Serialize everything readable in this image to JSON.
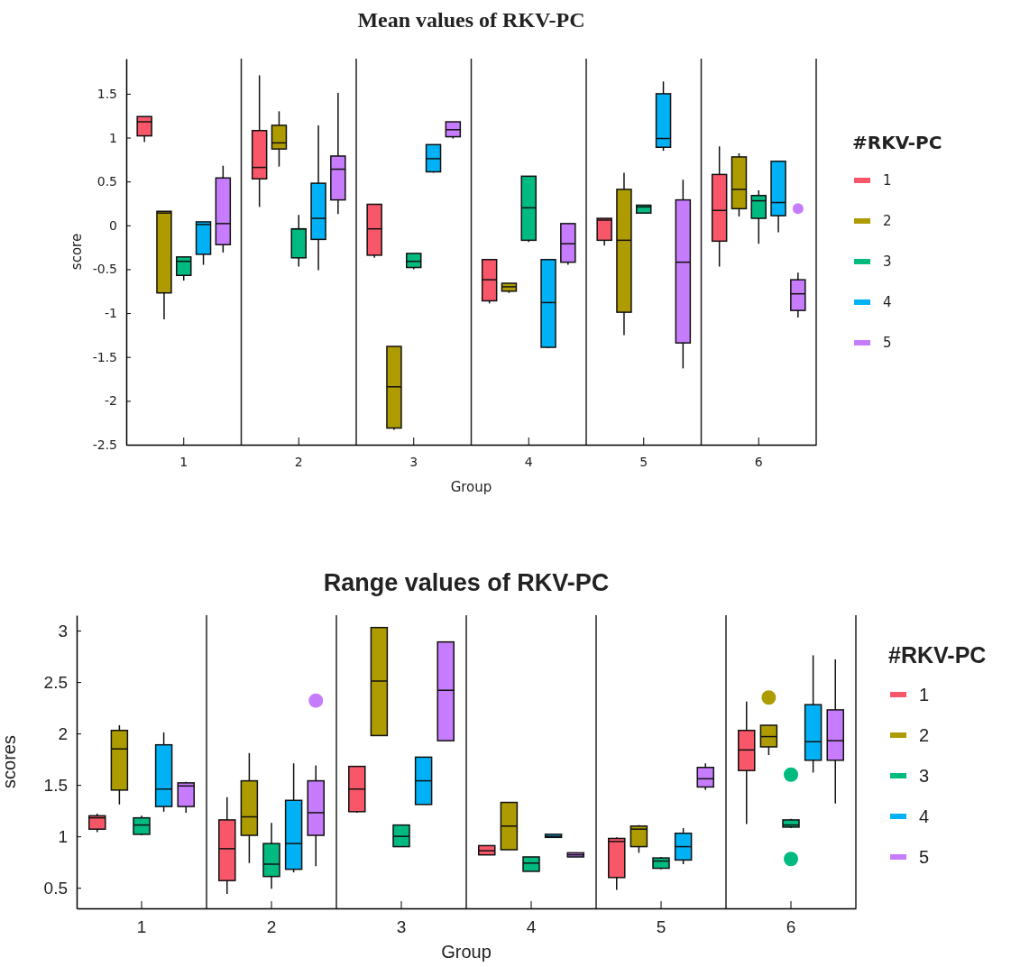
{
  "chart_data": [
    {
      "type": "box",
      "title": "Mean values of RKV-PC",
      "xlabel": "Group",
      "ylabel": "score",
      "legend_title": "#RKV-PC",
      "legend": "right",
      "categories": [
        "1",
        "2",
        "3",
        "4",
        "5",
        "6"
      ],
      "ylim": [
        -2.5,
        1.9
      ],
      "yticks": [
        -2.5,
        -2,
        -1.5,
        -1,
        -0.5,
        0,
        0.5,
        1,
        1.5
      ],
      "series": [
        {
          "name": "1",
          "color": "#f8576a",
          "boxes": [
            {
              "low": 0.95,
              "q1": 1.02,
              "median": 1.18,
              "q3": 1.24,
              "high": 1.24
            },
            {
              "low": 0.21,
              "q1": 0.53,
              "median": 0.66,
              "q3": 1.08,
              "high": 1.71
            },
            {
              "low": -0.37,
              "q1": -0.34,
              "median": -0.04,
              "q3": 0.24,
              "high": 0.24
            },
            {
              "low": -0.89,
              "q1": -0.86,
              "median": -0.62,
              "q3": -0.39,
              "high": -0.39
            },
            {
              "low": -0.23,
              "q1": -0.17,
              "median": 0.06,
              "q3": 0.08,
              "high": 0.08
            },
            {
              "low": -0.47,
              "q1": -0.18,
              "median": 0.17,
              "q3": 0.58,
              "high": 0.9
            }
          ]
        },
        {
          "name": "2",
          "color": "#ad9b00",
          "boxes": [
            {
              "low": -1.07,
              "q1": -0.77,
              "median": 0.14,
              "q3": 0.16,
              "high": 0.16
            },
            {
              "low": 0.67,
              "q1": 0.87,
              "median": 0.94,
              "q3": 1.14,
              "high": 1.3
            },
            {
              "low": -2.33,
              "q1": -2.31,
              "median": -1.84,
              "q3": -1.38,
              "high": -1.38
            },
            {
              "low": -0.77,
              "q1": -0.75,
              "median": -0.7,
              "q3": -0.66,
              "high": -0.66
            },
            {
              "low": -1.25,
              "q1": -0.99,
              "median": -0.17,
              "q3": 0.41,
              "high": 0.6
            },
            {
              "low": 0.1,
              "q1": 0.19,
              "median": 0.41,
              "q3": 0.78,
              "high": 0.82
            }
          ]
        },
        {
          "name": "3",
          "color": "#00ba7f",
          "boxes": [
            {
              "low": -0.63,
              "q1": -0.57,
              "median": -0.41,
              "q3": -0.36,
              "high": -0.36
            },
            {
              "low": -0.47,
              "q1": -0.37,
              "median": -0.04,
              "q3": -0.04,
              "high": 0.12
            },
            {
              "low": -0.5,
              "q1": -0.48,
              "median": -0.41,
              "q3": -0.32,
              "high": -0.32
            },
            {
              "low": -0.19,
              "q1": -0.17,
              "median": 0.2,
              "q3": 0.56,
              "high": 0.56
            },
            {
              "low": 0.14,
              "q1": 0.14,
              "median": 0.21,
              "q3": 0.23,
              "high": 0.23
            },
            {
              "low": -0.21,
              "q1": 0.08,
              "median": 0.28,
              "q3": 0.34,
              "high": 0.4
            }
          ]
        },
        {
          "name": "4",
          "color": "#00b2f5",
          "boxes": [
            {
              "low": -0.45,
              "q1": -0.33,
              "median": 0.01,
              "q3": 0.04,
              "high": 0.04
            },
            {
              "low": -0.51,
              "q1": -0.16,
              "median": 0.08,
              "q3": 0.48,
              "high": 1.14
            },
            {
              "low": 0.6,
              "q1": 0.61,
              "median": 0.76,
              "q3": 0.92,
              "high": 0.92
            },
            {
              "low": -1.4,
              "q1": -1.39,
              "median": -0.88,
              "q3": -0.39,
              "high": -0.39
            },
            {
              "low": 0.85,
              "q1": 0.89,
              "median": 0.99,
              "q3": 1.5,
              "high": 1.64
            },
            {
              "low": -0.08,
              "q1": 0.11,
              "median": 0.26,
              "q3": 0.73,
              "high": 0.73
            }
          ]
        },
        {
          "name": "5",
          "color": "#c67cfc",
          "boxes": [
            {
              "low": -0.31,
              "q1": -0.22,
              "median": 0.02,
              "q3": 0.54,
              "high": 0.68
            },
            {
              "low": 0.13,
              "q1": 0.29,
              "median": 0.64,
              "q3": 0.79,
              "high": 1.51
            },
            {
              "low": 0.99,
              "q1": 1.01,
              "median": 1.09,
              "q3": 1.18,
              "high": 1.18
            },
            {
              "low": -0.45,
              "q1": -0.42,
              "median": -0.21,
              "q3": 0.02,
              "high": 0.02
            },
            {
              "low": -1.63,
              "q1": -1.34,
              "median": -0.42,
              "q3": 0.29,
              "high": 0.52
            },
            {
              "low": -1.05,
              "q1": -0.97,
              "median": -0.78,
              "q3": -0.62,
              "high": -0.54,
              "outliers": [
                0.19
              ]
            }
          ]
        }
      ]
    },
    {
      "type": "box",
      "title": "Range values of RKV-PC",
      "xlabel": "Group",
      "ylabel": "scores",
      "legend_title": "#RKV-PC",
      "legend": "right",
      "categories": [
        "1",
        "2",
        "3",
        "4",
        "5",
        "6"
      ],
      "ylim": [
        0.3,
        3.15
      ],
      "yticks": [
        0.5,
        1,
        1.5,
        2,
        2.5,
        3
      ],
      "series": [
        {
          "name": "1",
          "color": "#f8576a",
          "boxes": [
            {
              "low": 1.04,
              "q1": 1.07,
              "median": 1.18,
              "q3": 1.2,
              "high": 1.22
            },
            {
              "low": 0.44,
              "q1": 0.57,
              "median": 0.88,
              "q3": 1.16,
              "high": 1.38
            },
            {
              "low": 1.23,
              "q1": 1.24,
              "median": 1.46,
              "q3": 1.68,
              "high": 1.68
            },
            {
              "low": 0.82,
              "q1": 0.82,
              "median": 0.86,
              "q3": 0.91,
              "high": 0.91
            },
            {
              "low": 0.48,
              "q1": 0.6,
              "median": 0.95,
              "q3": 0.98,
              "high": 0.99
            },
            {
              "low": 1.12,
              "q1": 1.64,
              "median": 1.84,
              "q3": 2.03,
              "high": 2.31
            }
          ]
        },
        {
          "name": "2",
          "color": "#ad9b00",
          "boxes": [
            {
              "low": 1.31,
              "q1": 1.45,
              "median": 1.85,
              "q3": 2.03,
              "high": 2.08
            },
            {
              "low": 0.74,
              "q1": 1.01,
              "median": 1.19,
              "q3": 1.54,
              "high": 1.81
            },
            {
              "low": 1.98,
              "q1": 1.98,
              "median": 2.51,
              "q3": 3.03,
              "high": 3.03
            },
            {
              "low": 0.87,
              "q1": 0.87,
              "median": 1.1,
              "q3": 1.33,
              "high": 1.33
            },
            {
              "low": 0.84,
              "q1": 0.9,
              "median": 1.07,
              "q3": 1.1,
              "high": 1.11
            },
            {
              "low": 1.79,
              "q1": 1.87,
              "median": 1.97,
              "q3": 2.08,
              "high": 2.08,
              "outliers": [
                2.35
              ]
            }
          ]
        },
        {
          "name": "3",
          "color": "#00ba7f",
          "boxes": [
            {
              "low": 1.01,
              "q1": 1.02,
              "median": 1.11,
              "q3": 1.18,
              "high": 1.2
            },
            {
              "low": 0.49,
              "q1": 0.61,
              "median": 0.73,
              "q3": 0.93,
              "high": 1.13
            },
            {
              "low": 0.9,
              "q1": 0.9,
              "median": 1,
              "q3": 1.11,
              "high": 1.11
            },
            {
              "low": 0.66,
              "q1": 0.66,
              "median": 0.74,
              "q3": 0.8,
              "high": 0.8
            },
            {
              "low": 0.68,
              "q1": 0.69,
              "median": 0.76,
              "q3": 0.79,
              "high": 0.8
            },
            {
              "low": 1.08,
              "q1": 1.09,
              "median": 1.11,
              "q3": 1.16,
              "high": 1.17,
              "outliers": [
                1.6,
                0.78
              ]
            }
          ]
        },
        {
          "name": "4",
          "color": "#00b2f5",
          "boxes": [
            {
              "low": 1.24,
              "q1": 1.29,
              "median": 1.46,
              "q3": 1.89,
              "high": 2.01
            },
            {
              "low": 0.65,
              "q1": 0.68,
              "median": 0.93,
              "q3": 1.35,
              "high": 1.71
            },
            {
              "low": 1.31,
              "q1": 1.31,
              "median": 1.54,
              "q3": 1.77,
              "high": 1.77
            },
            {
              "low": 0.99,
              "q1": 0.99,
              "median": 1,
              "q3": 1.02,
              "high": 1.02
            },
            {
              "low": 0.73,
              "q1": 0.77,
              "median": 0.9,
              "q3": 1.03,
              "high": 1.08
            },
            {
              "low": 1.62,
              "q1": 1.74,
              "median": 1.92,
              "q3": 2.28,
              "high": 2.76
            }
          ]
        },
        {
          "name": "5",
          "color": "#c67cfc",
          "boxes": [
            {
              "low": 1.23,
              "q1": 1.29,
              "median": 1.49,
              "q3": 1.52,
              "high": 1.53
            },
            {
              "low": 0.71,
              "q1": 1.01,
              "median": 1.23,
              "q3": 1.54,
              "high": 1.69,
              "outliers": [
                2.32
              ]
            },
            {
              "low": 1.93,
              "q1": 1.93,
              "median": 2.42,
              "q3": 2.89,
              "high": 2.89
            },
            {
              "low": 0.8,
              "q1": 0.8,
              "median": 0.82,
              "q3": 0.84,
              "high": 0.84
            },
            {
              "low": 1.45,
              "q1": 1.48,
              "median": 1.56,
              "q3": 1.67,
              "high": 1.71
            },
            {
              "low": 1.32,
              "q1": 1.74,
              "median": 1.93,
              "q3": 2.23,
              "high": 2.72
            }
          ]
        }
      ]
    }
  ]
}
